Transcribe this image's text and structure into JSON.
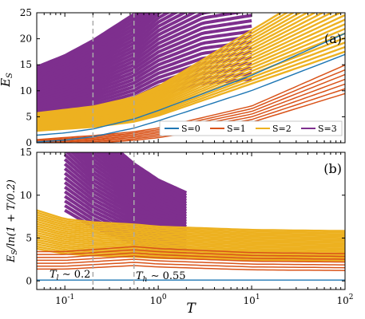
{
  "colors": {
    "S0": "#1f77b4",
    "S1": "#d95319",
    "S2": "#edb120",
    "S3": "#7e2f8e",
    "marker": "#aaaaaa"
  },
  "chart_data": [
    {
      "type": "line",
      "panel_label": "(a)",
      "ylabel": "E_S",
      "xlabel": "",
      "xscale": "log",
      "xlim": [
        0.05,
        100
      ],
      "ylim": [
        0,
        25
      ],
      "yticks": [
        0,
        5,
        10,
        15,
        20,
        25
      ],
      "ytick_labels": [
        "0",
        "5",
        "10",
        "15",
        "20",
        "25"
      ],
      "legend": {
        "placement": "lower-right",
        "entries": [
          "S=0",
          "S=1",
          "S=2",
          "S=3"
        ]
      },
      "vlines": [
        0.2,
        0.55
      ],
      "series": [
        {
          "name": "S=0",
          "x": [
            0.05,
            0.1,
            0.2,
            0.55,
            1,
            10,
            100
          ],
          "y": [
            0.8,
            1.2,
            1.9,
            3.7,
            5.2,
            11.5,
            19.0
          ]
        },
        {
          "name": "S=1",
          "x": [
            0.05,
            0.1,
            0.2,
            0.55,
            1,
            10,
            100
          ],
          "y": [
            0.0,
            0.35,
            0.65,
            1.3,
            1.9,
            5.5,
            12.2
          ]
        },
        {
          "name": "S=2",
          "x": [
            0.05,
            0.1,
            0.2,
            0.55,
            1,
            10,
            100
          ],
          "y": [
            4.0,
            4.5,
            5.0,
            6.4,
            8.0,
            16.5,
            25.0
          ]
        },
        {
          "name": "S=3",
          "x": [
            0.05,
            0.1,
            0.2,
            0.55,
            1,
            3,
            10
          ],
          "y": [
            9.0,
            10.5,
            12.5,
            16.0,
            19.5,
            23.5,
            25.0
          ]
        }
      ]
    },
    {
      "type": "line",
      "panel_label": "(b)",
      "ylabel": "E_S/ln(1+T/0.2)",
      "xlabel": "T",
      "xscale": "log",
      "xlim": [
        0.05,
        100
      ],
      "ylim": [
        -1,
        15
      ],
      "yticks": [
        0,
        5,
        10,
        15
      ],
      "ytick_labels": [
        "0",
        "5",
        "10",
        "15"
      ],
      "xticks": [
        0.1,
        1,
        10,
        100
      ],
      "xtick_labels": [
        "10^-1",
        "10^0",
        "10^1",
        "10^2"
      ],
      "vlines": [
        0.2,
        0.55
      ],
      "annotations": [
        "T_l ~ 0.2",
        "T_h ~ 0.55"
      ],
      "series": [
        {
          "name": "S=0",
          "x": [
            0.05,
            0.1,
            0.2,
            0.55,
            1,
            10,
            100
          ],
          "y": [
            0.1,
            0.1,
            0.1,
            0.1,
            0.1,
            0.1,
            0.1
          ]
        },
        {
          "name": "S=1",
          "x": [
            0.05,
            0.1,
            0.2,
            0.55,
            1,
            10,
            100
          ],
          "y": [
            2.4,
            2.4,
            2.6,
            2.9,
            2.7,
            2.3,
            2.2
          ]
        },
        {
          "name": "S=2",
          "x": [
            0.05,
            0.1,
            0.2,
            0.55,
            1,
            10,
            100
          ],
          "y": [
            6.0,
            5.2,
            4.9,
            4.7,
            4.5,
            4.2,
            4.1
          ]
        },
        {
          "name": "S=3",
          "x": [
            0.1,
            0.2,
            0.55,
            1,
            2
          ],
          "y": [
            15.0,
            12.0,
            9.0,
            7.6,
            6.5
          ]
        }
      ]
    }
  ]
}
